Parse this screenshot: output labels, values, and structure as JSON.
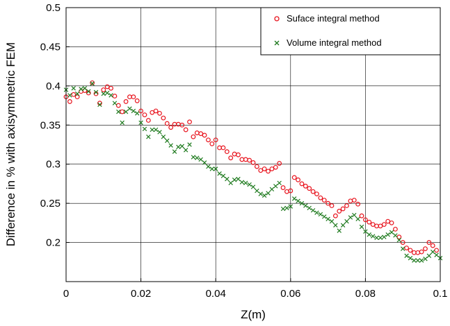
{
  "chart_data": {
    "type": "scatter",
    "title": "",
    "xlabel": "Z(m)",
    "ylabel": "Difference in % with axisymmetric FEM",
    "xlim": [
      0,
      0.1
    ],
    "ylim": [
      0.15,
      0.5
    ],
    "xticks": [
      0,
      0.02,
      0.04,
      0.06,
      0.08,
      0.1
    ],
    "xtick_labels": [
      "0",
      "0.02",
      "0.04",
      "0.06",
      "0.08",
      "0.1"
    ],
    "yticks": [
      0.2,
      0.25,
      0.3,
      0.35,
      0.4,
      0.45,
      0.5
    ],
    "ytick_labels": [
      "0.2",
      "0.25",
      "0.3",
      "0.35",
      "0.4",
      "0.45",
      "0.5"
    ],
    "grid": true,
    "legend_position": "top-right",
    "series": [
      {
        "name": "Suface integral method",
        "marker": "circle",
        "color": "#e8141e",
        "points": [
          [
            0,
            0.386
          ],
          [
            0.001,
            0.38
          ],
          [
            0.002,
            0.389
          ],
          [
            0.003,
            0.386
          ],
          [
            0.004,
            0.393
          ],
          [
            0.005,
            0.394
          ],
          [
            0.006,
            0.391
          ],
          [
            0.007,
            0.404
          ],
          [
            0.008,
            0.39
          ],
          [
            0.009,
            0.378
          ],
          [
            0.01,
            0.395
          ],
          [
            0.011,
            0.399
          ],
          [
            0.012,
            0.397
          ],
          [
            0.013,
            0.387
          ],
          [
            0.014,
            0.375
          ],
          [
            0.015,
            0.367
          ],
          [
            0.016,
            0.38
          ],
          [
            0.017,
            0.386
          ],
          [
            0.018,
            0.386
          ],
          [
            0.019,
            0.381
          ],
          [
            0.02,
            0.368
          ],
          [
            0.021,
            0.363
          ],
          [
            0.022,
            0.356
          ],
          [
            0.023,
            0.366
          ],
          [
            0.024,
            0.368
          ],
          [
            0.025,
            0.365
          ],
          [
            0.026,
            0.359
          ],
          [
            0.027,
            0.352
          ],
          [
            0.028,
            0.347
          ],
          [
            0.029,
            0.351
          ],
          [
            0.03,
            0.351
          ],
          [
            0.031,
            0.35
          ],
          [
            0.032,
            0.344
          ],
          [
            0.033,
            0.354
          ],
          [
            0.034,
            0.335
          ],
          [
            0.035,
            0.34
          ],
          [
            0.036,
            0.339
          ],
          [
            0.037,
            0.337
          ],
          [
            0.038,
            0.331
          ],
          [
            0.039,
            0.326
          ],
          [
            0.04,
            0.331
          ],
          [
            0.041,
            0.321
          ],
          [
            0.042,
            0.321
          ],
          [
            0.043,
            0.316
          ],
          [
            0.044,
            0.308
          ],
          [
            0.045,
            0.313
          ],
          [
            0.046,
            0.312
          ],
          [
            0.047,
            0.306
          ],
          [
            0.048,
            0.306
          ],
          [
            0.049,
            0.305
          ],
          [
            0.05,
            0.302
          ],
          [
            0.051,
            0.297
          ],
          [
            0.052,
            0.292
          ],
          [
            0.053,
            0.294
          ],
          [
            0.054,
            0.291
          ],
          [
            0.055,
            0.294
          ],
          [
            0.056,
            0.296
          ],
          [
            0.057,
            0.301
          ],
          [
            0.058,
            0.27
          ],
          [
            0.059,
            0.265
          ],
          [
            0.06,
            0.266
          ],
          [
            0.061,
            0.283
          ],
          [
            0.062,
            0.28
          ],
          [
            0.063,
            0.275
          ],
          [
            0.064,
            0.272
          ],
          [
            0.065,
            0.269
          ],
          [
            0.066,
            0.265
          ],
          [
            0.067,
            0.262
          ],
          [
            0.068,
            0.257
          ],
          [
            0.069,
            0.254
          ],
          [
            0.07,
            0.25
          ],
          [
            0.071,
            0.247
          ],
          [
            0.072,
            0.234
          ],
          [
            0.073,
            0.24
          ],
          [
            0.074,
            0.243
          ],
          [
            0.075,
            0.247
          ],
          [
            0.076,
            0.253
          ],
          [
            0.077,
            0.254
          ],
          [
            0.078,
            0.249
          ],
          [
            0.079,
            0.234
          ],
          [
            0.08,
            0.229
          ],
          [
            0.081,
            0.226
          ],
          [
            0.082,
            0.223
          ],
          [
            0.083,
            0.221
          ],
          [
            0.084,
            0.221
          ],
          [
            0.085,
            0.223
          ],
          [
            0.086,
            0.227
          ],
          [
            0.087,
            0.225
          ],
          [
            0.088,
            0.217
          ],
          [
            0.089,
            0.207
          ],
          [
            0.09,
            0.2
          ],
          [
            0.091,
            0.193
          ],
          [
            0.092,
            0.19
          ],
          [
            0.093,
            0.187
          ],
          [
            0.094,
            0.187
          ],
          [
            0.095,
            0.188
          ],
          [
            0.096,
            0.192
          ],
          [
            0.097,
            0.2
          ],
          [
            0.098,
            0.196
          ],
          [
            0.099,
            0.19
          ]
        ]
      },
      {
        "name": "Volume integral method",
        "marker": "x",
        "color": "#1e7a1e",
        "points": [
          [
            0,
            0.395
          ],
          [
            0.001,
            0.388
          ],
          [
            0.002,
            0.397
          ],
          [
            0.003,
            0.39
          ],
          [
            0.004,
            0.396
          ],
          [
            0.005,
            0.397
          ],
          [
            0.006,
            0.393
          ],
          [
            0.007,
            0.403
          ],
          [
            0.008,
            0.392
          ],
          [
            0.009,
            0.376
          ],
          [
            0.01,
            0.39
          ],
          [
            0.011,
            0.391
          ],
          [
            0.012,
            0.388
          ],
          [
            0.013,
            0.378
          ],
          [
            0.014,
            0.367
          ],
          [
            0.015,
            0.353
          ],
          [
            0.016,
            0.367
          ],
          [
            0.017,
            0.371
          ],
          [
            0.018,
            0.368
          ],
          [
            0.019,
            0.365
          ],
          [
            0.02,
            0.353
          ],
          [
            0.021,
            0.345
          ],
          [
            0.022,
            0.335
          ],
          [
            0.023,
            0.344
          ],
          [
            0.024,
            0.344
          ],
          [
            0.025,
            0.341
          ],
          [
            0.026,
            0.335
          ],
          [
            0.027,
            0.33
          ],
          [
            0.028,
            0.324
          ],
          [
            0.029,
            0.316
          ],
          [
            0.03,
            0.322
          ],
          [
            0.031,
            0.323
          ],
          [
            0.032,
            0.318
          ],
          [
            0.033,
            0.325
          ],
          [
            0.034,
            0.309
          ],
          [
            0.035,
            0.308
          ],
          [
            0.036,
            0.306
          ],
          [
            0.037,
            0.302
          ],
          [
            0.038,
            0.297
          ],
          [
            0.039,
            0.294
          ],
          [
            0.04,
            0.294
          ],
          [
            0.041,
            0.288
          ],
          [
            0.042,
            0.285
          ],
          [
            0.043,
            0.281
          ],
          [
            0.044,
            0.276
          ],
          [
            0.045,
            0.28
          ],
          [
            0.046,
            0.281
          ],
          [
            0.047,
            0.277
          ],
          [
            0.048,
            0.276
          ],
          [
            0.049,
            0.274
          ],
          [
            0.05,
            0.271
          ],
          [
            0.051,
            0.266
          ],
          [
            0.052,
            0.262
          ],
          [
            0.053,
            0.26
          ],
          [
            0.054,
            0.263
          ],
          [
            0.055,
            0.268
          ],
          [
            0.056,
            0.272
          ],
          [
            0.057,
            0.276
          ],
          [
            0.058,
            0.243
          ],
          [
            0.059,
            0.244
          ],
          [
            0.06,
            0.246
          ],
          [
            0.061,
            0.256
          ],
          [
            0.062,
            0.253
          ],
          [
            0.063,
            0.25
          ],
          [
            0.064,
            0.247
          ],
          [
            0.065,
            0.244
          ],
          [
            0.066,
            0.241
          ],
          [
            0.067,
            0.238
          ],
          [
            0.068,
            0.236
          ],
          [
            0.069,
            0.233
          ],
          [
            0.07,
            0.23
          ],
          [
            0.071,
            0.227
          ],
          [
            0.072,
            0.222
          ],
          [
            0.073,
            0.215
          ],
          [
            0.074,
            0.222
          ],
          [
            0.075,
            0.227
          ],
          [
            0.076,
            0.232
          ],
          [
            0.077,
            0.235
          ],
          [
            0.078,
            0.23
          ],
          [
            0.079,
            0.22
          ],
          [
            0.08,
            0.214
          ],
          [
            0.081,
            0.21
          ],
          [
            0.082,
            0.208
          ],
          [
            0.083,
            0.206
          ],
          [
            0.084,
            0.206
          ],
          [
            0.085,
            0.207
          ],
          [
            0.086,
            0.21
          ],
          [
            0.087,
            0.213
          ],
          [
            0.088,
            0.209
          ],
          [
            0.089,
            0.203
          ],
          [
            0.09,
            0.192
          ],
          [
            0.091,
            0.183
          ],
          [
            0.092,
            0.18
          ],
          [
            0.093,
            0.177
          ],
          [
            0.094,
            0.177
          ],
          [
            0.095,
            0.177
          ],
          [
            0.096,
            0.179
          ],
          [
            0.097,
            0.183
          ],
          [
            0.098,
            0.188
          ],
          [
            0.099,
            0.184
          ],
          [
            0.1,
            0.18
          ]
        ]
      }
    ]
  }
}
